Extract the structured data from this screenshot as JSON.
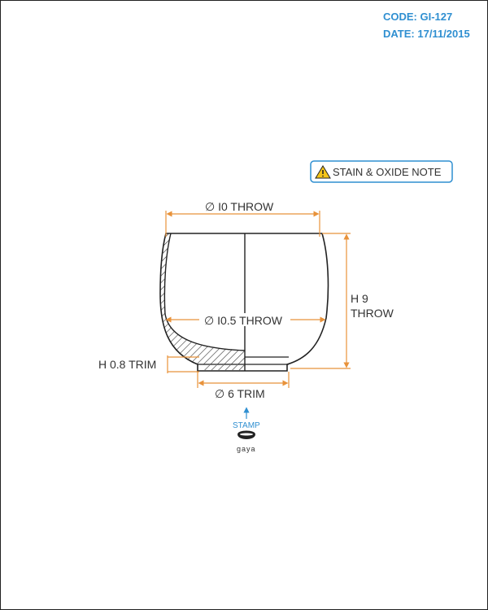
{
  "header": {
    "code": "CODE: GI-127",
    "date": "DATE: 17/11/2015"
  },
  "note": {
    "label": "STAIN & OXIDE NOTE",
    "icon": "warning-icon"
  },
  "dimensions": {
    "top_diameter": "∅ I0 THROW",
    "inner_diameter": "∅ I0.5 THROW",
    "height_line1": "H 9",
    "height_line2": "THROW",
    "foot_height": "H 0.8 TRIM",
    "foot_diameter": "∅ 6 TRIM"
  },
  "stamp": {
    "label": "STAMP",
    "brand": "gaya"
  },
  "colors": {
    "dimension": "#e8923a",
    "accent": "#2f8fd1",
    "outline": "#222222"
  }
}
